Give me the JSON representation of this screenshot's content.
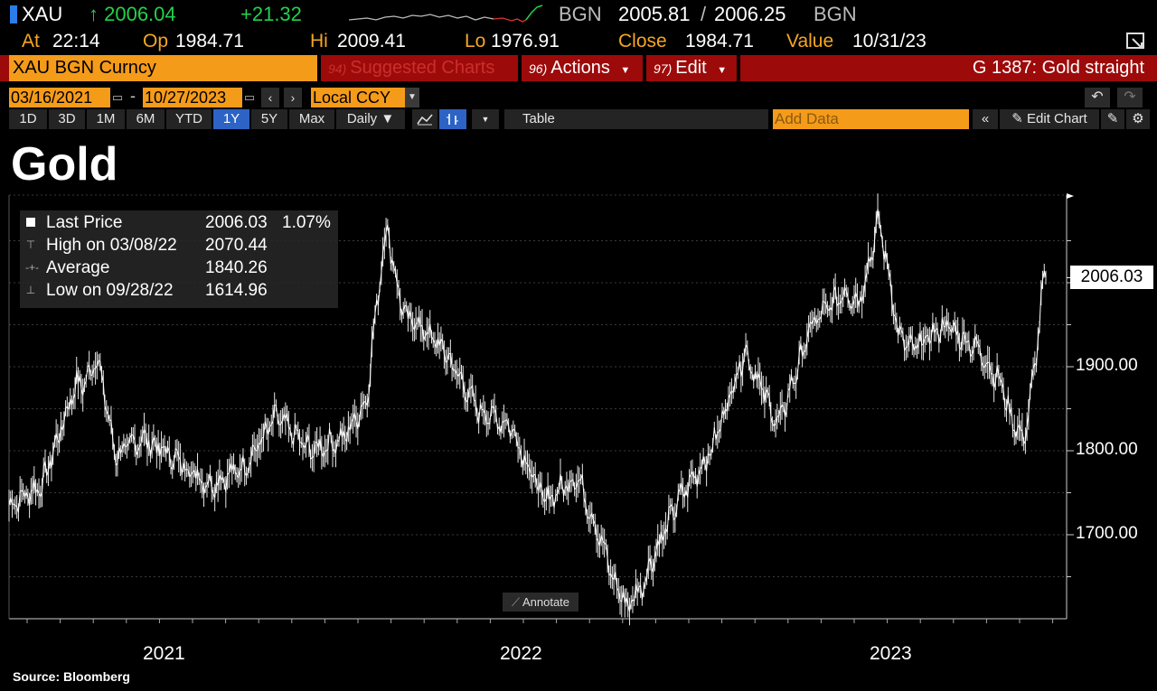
{
  "quote": {
    "ticker": "XAU",
    "last": "↑ 2006.04",
    "change": "+21.32",
    "source1": "BGN",
    "bid": "2005.81",
    "sep": "/",
    "ask": "2006.25",
    "source2": "BGN"
  },
  "info": {
    "at_label": "At",
    "at_value": "22:14",
    "op_label": "Op",
    "op_value": "1984.71",
    "hi_label": "Hi",
    "hi_value": "2009.41",
    "lo_label": "Lo",
    "lo_value": "1976.91",
    "close_label": "Close",
    "close_value": "1984.71",
    "value_label": "Value",
    "value_date": "10/31/23"
  },
  "menu": {
    "security": "XAU BGN Curncy",
    "suggested_key": "94)",
    "suggested": "Suggested Charts",
    "actions_key": "96)",
    "actions": "Actions",
    "edit_key": "97)",
    "edit": "Edit",
    "title": "G 1387: Gold straight"
  },
  "dates": {
    "start": "03/16/2021",
    "dash": "-",
    "end": "10/27/2023",
    "currency": "Local CCY"
  },
  "toolbar": {
    "periods": [
      "1D",
      "3D",
      "1M",
      "6M",
      "YTD",
      "1Y",
      "5Y",
      "Max"
    ],
    "active_period": "1Y",
    "frequency": "Daily ▼",
    "table": "Table",
    "add_data_placeholder": "Add Data",
    "edit_chart": "Edit Chart"
  },
  "chart_title": "Gold",
  "legend": {
    "last_label": "Last Price",
    "last_value": "2006.03",
    "last_pct": "1.07%",
    "high_label": "High on 03/08/22",
    "high_value": "2070.44",
    "avg_label": "Average",
    "avg_value": "1840.26",
    "low_label": "Low on 09/28/22",
    "low_value": "1614.96"
  },
  "annotate": "Annotate",
  "price_tag": "2006.03",
  "source": "Source:  Bloomberg",
  "colors": {
    "background": "#000000",
    "orange": "#f59b1a",
    "menu_red": "#9d0a0a",
    "green": "#21d24b",
    "active_blue": "#2c63c5"
  },
  "chart_data": {
    "type": "line",
    "title": "Gold",
    "series": [
      {
        "name": "Last Price"
      }
    ],
    "x": [
      "2021-03",
      "2021-04",
      "2021-05",
      "2021-06",
      "2021-07",
      "2021-08",
      "2021-09",
      "2021-10",
      "2021-11",
      "2021-12",
      "2022-01",
      "2022-02",
      "2022-03",
      "2022-04",
      "2022-05",
      "2022-06",
      "2022-07",
      "2022-08",
      "2022-09",
      "2022-10",
      "2022-11",
      "2022-12",
      "2023-01",
      "2023-02",
      "2023-03",
      "2023-04",
      "2023-05",
      "2023-06",
      "2023-07",
      "2023-08",
      "2023-09",
      "2023-10"
    ],
    "values": [
      1735,
      1760,
      1880,
      1790,
      1815,
      1790,
      1760,
      1780,
      1840,
      1800,
      1815,
      1880,
      1960,
      1920,
      1850,
      1830,
      1740,
      1770,
      1660,
      1650,
      1740,
      1800,
      1920,
      1830,
      1950,
      1990,
      1960,
      1920,
      1950,
      1920,
      1860,
      2006.03
    ],
    "xlabels": [
      "2021",
      "2022",
      "2023"
    ],
    "yticks": [
      1700,
      1800,
      1900
    ],
    "ylim": [
      1600,
      2100
    ],
    "last": 2006.03,
    "high": 2070.44,
    "average": 1840.26,
    "low": 1614.96,
    "grid": true
  }
}
